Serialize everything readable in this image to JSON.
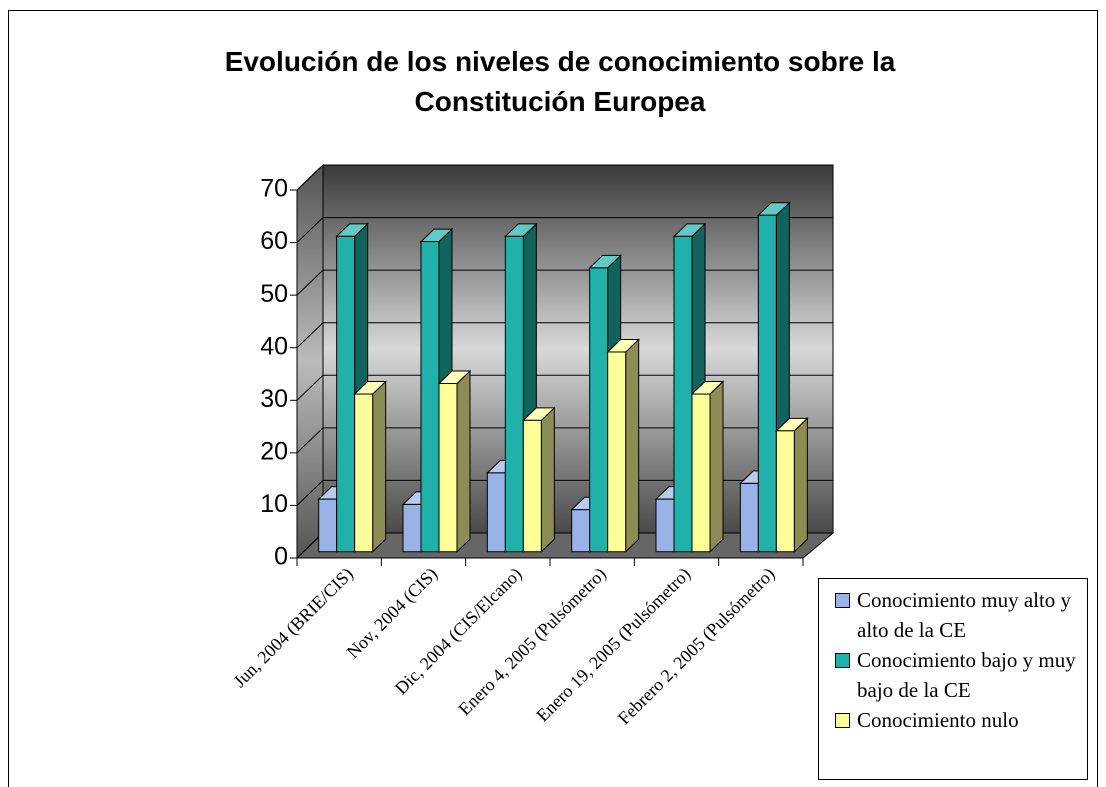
{
  "chart_data": {
    "type": "bar3d",
    "title": "Evolución de los niveles de conocimiento sobre la Constitución Europea",
    "categories": [
      "Jun, 2004 (BRIE/CIS)",
      "Nov, 2004 (CIS)",
      "Dic, 2004 (CIS/Elcano)",
      "Enero 4, 2005 (Pulsómetro)",
      "Enero 19, 2005 (Pulsómetro)",
      "Febrero 2, 2005 (Pulsómetro)"
    ],
    "series": [
      {
        "name": "Conocimiento  muy alto y alto de la CE",
        "color": "#99b3e6",
        "values": [
          10,
          9,
          15,
          8,
          10,
          13
        ]
      },
      {
        "name": "Conocimiento  bajo y muy bajo de la CE",
        "color": "#20b2aa",
        "values": [
          60,
          59,
          60,
          54,
          60,
          64
        ]
      },
      {
        "name": "Conocimiento nulo",
        "color": "#ffff99",
        "values": [
          30,
          32,
          25,
          38,
          30,
          23
        ]
      }
    ],
    "ylim": [
      0,
      70
    ],
    "yticks": [
      0,
      10,
      20,
      30,
      40,
      50,
      60,
      70
    ],
    "grid": true
  }
}
